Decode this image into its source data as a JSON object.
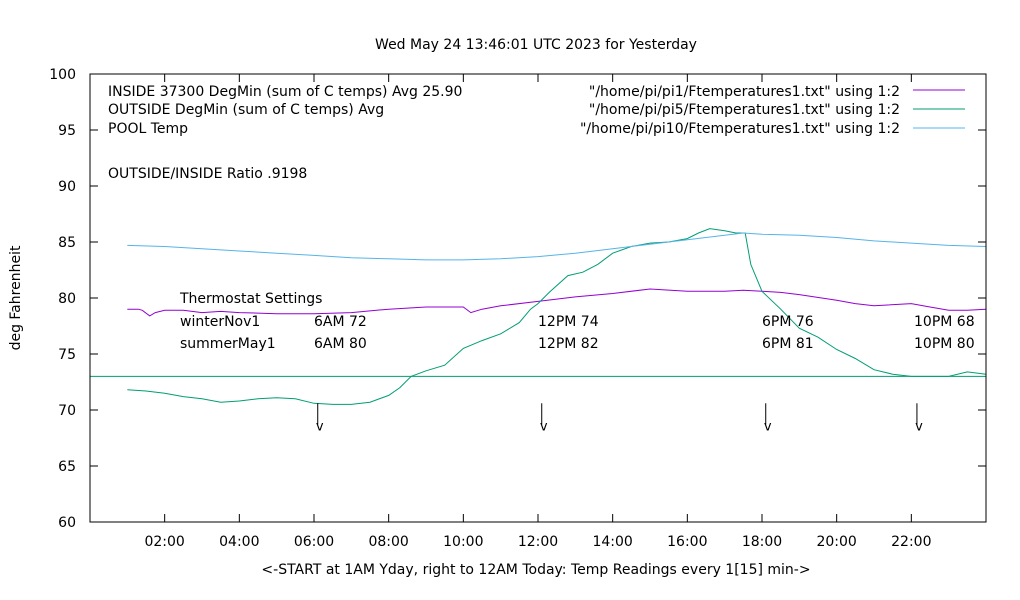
{
  "chart_data": {
    "type": "line",
    "title": "Wed May 24 13:46:01 UTC 2023 for Yesterday",
    "xlabel": "<-START at 1AM Yday, right to 12AM Today:  Temp Readings every 1[15] min->",
    "ylabel": "deg Fahrenheit",
    "ylim": [
      60,
      100
    ],
    "xlim": [
      0,
      24
    ],
    "grid": false,
    "legend_position": "top",
    "yticks": [
      {
        "label": "60",
        "value": 60
      },
      {
        "label": "65",
        "value": 65
      },
      {
        "label": "70",
        "value": 70
      },
      {
        "label": "75",
        "value": 75
      },
      {
        "label": "80",
        "value": 80
      },
      {
        "label": "85",
        "value": 85
      },
      {
        "label": "90",
        "value": 90
      },
      {
        "label": "95",
        "value": 95
      },
      {
        "label": "100",
        "value": 100
      }
    ],
    "xticks": [
      {
        "label": "02:00",
        "value": 2
      },
      {
        "label": "04:00",
        "value": 4
      },
      {
        "label": "06:00",
        "value": 6
      },
      {
        "label": "08:00",
        "value": 8
      },
      {
        "label": "10:00",
        "value": 10
      },
      {
        "label": "12:00",
        "value": 12
      },
      {
        "label": "14:00",
        "value": 14
      },
      {
        "label": "16:00",
        "value": 16
      },
      {
        "label": "18:00",
        "value": 18
      },
      {
        "label": "20:00",
        "value": 20
      },
      {
        "label": "22:00",
        "value": 22
      }
    ],
    "legend": [
      {
        "label": "INSIDE 37300 DegMin (sum of C temps) Avg 25.90",
        "file": "\"/home/pi/pi1/Ftemperatures1.txt\" using 1:2",
        "color": "#9400d3"
      },
      {
        "label": "OUTSIDE  DegMin (sum of C temps) Avg",
        "file": "\"/home/pi/pi5/Ftemperatures1.txt\" using 1:2",
        "color": "#009e73"
      },
      {
        "label": "POOL Temp",
        "file": "\"/home/pi/pi10/Ftemperatures1.txt\" using 1:2",
        "color": "#56b4e9"
      }
    ],
    "ratio_text": "OUTSIDE/INSIDE Ratio .9198",
    "thermostat": {
      "title": "Thermostat Settings",
      "rows": [
        {
          "name": "winterNov1",
          "values": [
            "6AM 72",
            "12PM 74",
            "6PM 76",
            "10PM 68"
          ]
        },
        {
          "name": "summerMay1",
          "values": [
            "6AM 80",
            "12PM 82",
            "6PM 81",
            "10PM 80"
          ]
        }
      ]
    },
    "markers": [
      {
        "x": 6.1,
        "label": "v"
      },
      {
        "x": 12.1,
        "label": "v"
      },
      {
        "x": 18.1,
        "label": "v"
      },
      {
        "x": 22.15,
        "label": "v"
      }
    ],
    "hline": {
      "value": 73,
      "color": "#009e73"
    },
    "series": [
      {
        "name": "INSIDE 37300 DegMin (sum of C temps) Avg 25.90",
        "color": "#9400d3",
        "points": [
          [
            1,
            79
          ],
          [
            1.3,
            79
          ],
          [
            1.4,
            78.9
          ],
          [
            1.6,
            78.4
          ],
          [
            1.75,
            78.7
          ],
          [
            2,
            78.9
          ],
          [
            2.5,
            78.9
          ],
          [
            3,
            78.7
          ],
          [
            3.5,
            78.8
          ],
          [
            4,
            78.7
          ],
          [
            5,
            78.6
          ],
          [
            6,
            78.6
          ],
          [
            7,
            78.7
          ],
          [
            8,
            79
          ],
          [
            9,
            79.2
          ],
          [
            10,
            79.2
          ],
          [
            10.2,
            78.7
          ],
          [
            10.5,
            79
          ],
          [
            11,
            79.3
          ],
          [
            12,
            79.7
          ],
          [
            13,
            80.1
          ],
          [
            14,
            80.4
          ],
          [
            15,
            80.8
          ],
          [
            16,
            80.6
          ],
          [
            17,
            80.6
          ],
          [
            17.5,
            80.7
          ],
          [
            18,
            80.6
          ],
          [
            18.5,
            80.5
          ],
          [
            19,
            80.3
          ],
          [
            20,
            79.8
          ],
          [
            20.5,
            79.5
          ],
          [
            21,
            79.3
          ],
          [
            22,
            79.5
          ],
          [
            22.5,
            79.2
          ],
          [
            23,
            78.9
          ],
          [
            23.5,
            78.9
          ],
          [
            24,
            79
          ]
        ]
      },
      {
        "name": "OUTSIDE  DegMin (sum of C temps) Avg",
        "color": "#009e73",
        "points": [
          [
            1,
            71.8
          ],
          [
            1.5,
            71.7
          ],
          [
            2,
            71.5
          ],
          [
            2.5,
            71.2
          ],
          [
            3,
            71
          ],
          [
            3.5,
            70.7
          ],
          [
            4,
            70.8
          ],
          [
            4.5,
            71
          ],
          [
            5,
            71.1
          ],
          [
            5.5,
            71
          ],
          [
            6,
            70.6
          ],
          [
            6.5,
            70.5
          ],
          [
            7,
            70.5
          ],
          [
            7.5,
            70.7
          ],
          [
            8,
            71.3
          ],
          [
            8.3,
            72
          ],
          [
            8.6,
            73
          ],
          [
            9,
            73.5
          ],
          [
            9.5,
            74
          ],
          [
            10,
            75.5
          ],
          [
            10.5,
            76.2
          ],
          [
            11,
            76.8
          ],
          [
            11.5,
            77.8
          ],
          [
            11.8,
            79
          ],
          [
            12,
            79.5
          ],
          [
            12.3,
            80.5
          ],
          [
            12.8,
            82
          ],
          [
            13.2,
            82.3
          ],
          [
            13.6,
            83
          ],
          [
            14,
            84
          ],
          [
            14.5,
            84.6
          ],
          [
            15,
            84.9
          ],
          [
            15.5,
            85
          ],
          [
            16,
            85.3
          ],
          [
            16.3,
            85.8
          ],
          [
            16.6,
            86.2
          ],
          [
            17,
            86
          ],
          [
            17.3,
            85.8
          ],
          [
            17.55,
            85.8
          ],
          [
            17.7,
            83
          ],
          [
            18,
            80.6
          ],
          [
            18.5,
            79
          ],
          [
            19,
            77.3
          ],
          [
            19.5,
            76.5
          ],
          [
            20,
            75.4
          ],
          [
            20.5,
            74.6
          ],
          [
            21,
            73.6
          ],
          [
            21.5,
            73.2
          ],
          [
            22,
            73
          ],
          [
            22.5,
            73
          ],
          [
            23,
            73
          ],
          [
            23.5,
            73.4
          ],
          [
            24,
            73.2
          ]
        ]
      },
      {
        "name": "POOL Temp",
        "color": "#56b4e9",
        "points": [
          [
            1,
            84.7
          ],
          [
            2,
            84.6
          ],
          [
            3,
            84.4
          ],
          [
            4,
            84.2
          ],
          [
            5,
            84
          ],
          [
            6,
            83.8
          ],
          [
            7,
            83.6
          ],
          [
            8,
            83.5
          ],
          [
            9,
            83.4
          ],
          [
            10,
            83.4
          ],
          [
            11,
            83.5
          ],
          [
            12,
            83.7
          ],
          [
            13,
            84
          ],
          [
            14,
            84.4
          ],
          [
            15,
            84.8
          ],
          [
            16,
            85.2
          ],
          [
            17,
            85.6
          ],
          [
            17.5,
            85.8
          ],
          [
            18,
            85.7
          ],
          [
            19,
            85.6
          ],
          [
            20,
            85.4
          ],
          [
            21,
            85.1
          ],
          [
            22,
            84.9
          ],
          [
            23,
            84.7
          ],
          [
            24,
            84.6
          ]
        ]
      }
    ]
  }
}
